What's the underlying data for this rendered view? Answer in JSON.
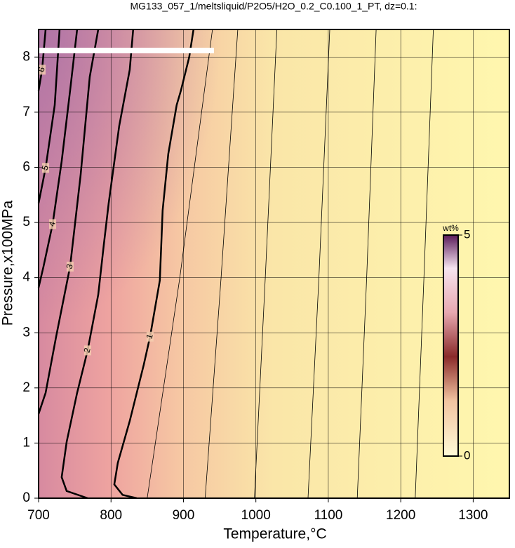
{
  "chart_data": {
    "type": "contour",
    "title": "MG133_057_1/meltsliquid/P2O5/H2O_0.2_C0.100_1_PT, dz=0.1:",
    "xlabel": "Temperature,°C",
    "ylabel": "Pressure,x100MPa",
    "xlim": [
      700,
      1350
    ],
    "ylim": [
      0,
      8.5
    ],
    "xticks": [
      700,
      800,
      900,
      1000,
      1100,
      1200,
      1300
    ],
    "yticks": [
      0,
      1,
      2,
      3,
      4,
      5,
      6,
      7,
      8
    ],
    "grid": true,
    "colorbar": {
      "label": "wt%",
      "lim": [
        0,
        5
      ],
      "ticks": [
        0,
        5
      ]
    },
    "contours": [
      {
        "level": 1,
        "x": [
          913.9,
          908,
          896.5,
          890.6,
          879,
          871.3,
          867.4,
          853.9,
          845.2,
          825.8,
          809.4,
          804.5,
          816,
          835.5
        ],
        "y": [
          8.5,
          8.0,
          7.39,
          7.13,
          6.24,
          5.22,
          3.95,
          2.93,
          2.42,
          1.4,
          0.64,
          0.25,
          0.06,
          0
        ]
      },
      {
        "level": 2,
        "x": [
          830.6,
          825.8,
          811.3,
          796.8,
          790,
          782.3,
          767.7,
          753.2,
          738.7,
          731.9,
          738.7,
          767.7
        ],
        "y": [
          8.5,
          7.77,
          6.75,
          5.35,
          4.59,
          3.69,
          2.68,
          1.91,
          1.02,
          0.38,
          0.13,
          0
        ]
      },
      {
        "level": 3,
        "x": [
          782.3,
          770.6,
          758,
          743.5,
          724.2,
          709.7,
          700
        ],
        "y": [
          8.5,
          7.64,
          5.86,
          4.2,
          2.93,
          1.91,
          1.53
        ]
      },
      {
        "level": 4,
        "x": [
          753.2,
          743.5,
          731.9,
          719.4,
          706.8,
          700
        ],
        "y": [
          8.5,
          7.39,
          6.11,
          4.97,
          4.2,
          3.82
        ]
      },
      {
        "level": 5,
        "x": [
          729,
          722.3,
          709.7,
          700
        ],
        "y": [
          8.5,
          7.13,
          5.99,
          5.35
        ]
      },
      {
        "level": 6,
        "x": [
          709.7,
          704.8,
          700
        ],
        "y": [
          8.5,
          7.77,
          7.39
        ]
      },
      {
        "level": 0.8,
        "x": [
          850,
          895,
          940
        ],
        "y": [
          0,
          4,
          8.5
        ]
      },
      {
        "level": 0.6,
        "x": [
          930,
          952,
          975
        ],
        "y": [
          0,
          4,
          8.5
        ]
      },
      {
        "level": 0.4,
        "x": [
          998,
          1013,
          1029
        ],
        "y": [
          0,
          4,
          8.5
        ]
      },
      {
        "level": 0.3,
        "x": [
          1072,
          1087,
          1102
        ],
        "y": [
          0,
          4,
          8.5
        ]
      },
      {
        "level": 0.2,
        "x": [
          1140,
          1153,
          1166
        ],
        "y": [
          0,
          4,
          8.5
        ]
      },
      {
        "level": 0.1,
        "x": [
          1220,
          1232,
          1245
        ],
        "y": [
          0,
          4,
          8.5
        ]
      }
    ]
  }
}
